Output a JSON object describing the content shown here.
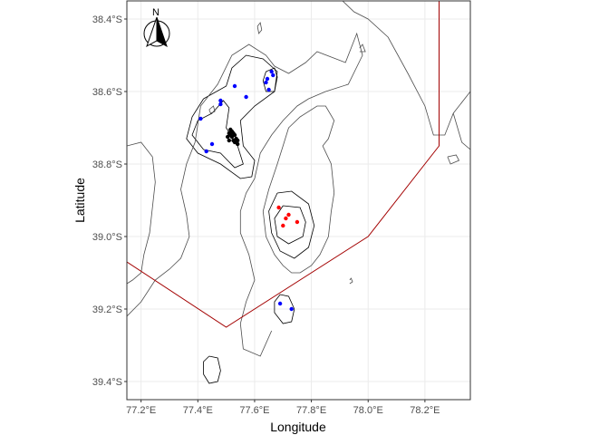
{
  "chart_data": {
    "type": "scatter",
    "xlabel": "Longitude",
    "ylabel": "Latitude",
    "xlim": [
      77.15,
      78.36
    ],
    "ylim": [
      -39.45,
      -38.35
    ],
    "x_ticks": [
      {
        "value": 77.2,
        "label": "77.2°E"
      },
      {
        "value": 77.4,
        "label": "77.4°E"
      },
      {
        "value": 77.6,
        "label": "77.6°E"
      },
      {
        "value": 77.8,
        "label": "77.8°E"
      },
      {
        "value": 78.0,
        "label": "78.0°E"
      },
      {
        "value": 78.2,
        "label": "78.2°E"
      }
    ],
    "y_ticks": [
      {
        "value": -38.4,
        "label": "38.4°S"
      },
      {
        "value": -38.6,
        "label": "38.6°S"
      },
      {
        "value": -38.8,
        "label": "38.8°S"
      },
      {
        "value": -39.0,
        "label": "39.0°S"
      },
      {
        "value": -39.2,
        "label": "39.2°S"
      },
      {
        "value": -39.4,
        "label": "39.4°S"
      }
    ],
    "north_arrow_label": "N",
    "grid": true,
    "panel_background": "#ffffff",
    "grid_color": "#ebebeb",
    "series": [
      {
        "color": "#0000ff",
        "points": [
          [
            77.53,
            -38.585
          ],
          [
            77.57,
            -38.615
          ],
          [
            77.48,
            -38.625
          ],
          [
            77.48,
            -38.635
          ],
          [
            77.41,
            -38.675
          ],
          [
            77.45,
            -38.745
          ],
          [
            77.43,
            -38.765
          ],
          [
            77.66,
            -38.545
          ],
          [
            77.665,
            -38.555
          ],
          [
            77.645,
            -38.565
          ],
          [
            77.64,
            -38.575
          ],
          [
            77.65,
            -38.595
          ],
          [
            77.69,
            -39.185
          ],
          [
            77.73,
            -39.2
          ]
        ]
      },
      {
        "color": "#ff0000",
        "points": [
          [
            77.685,
            -38.92
          ],
          [
            77.72,
            -38.94
          ],
          [
            77.71,
            -38.95
          ],
          [
            77.75,
            -38.96
          ],
          [
            77.7,
            -38.97
          ]
        ]
      },
      {
        "color": "#000000",
        "points": [
          [
            77.515,
            -38.705
          ],
          [
            77.52,
            -38.71
          ],
          [
            77.51,
            -38.715
          ],
          [
            77.525,
            -38.715
          ],
          [
            77.515,
            -38.72
          ],
          [
            77.53,
            -38.72
          ],
          [
            77.52,
            -38.725
          ],
          [
            77.535,
            -38.73
          ],
          [
            77.525,
            -38.735
          ],
          [
            77.54,
            -38.735
          ],
          [
            77.53,
            -38.74
          ],
          [
            77.54,
            -38.745
          ],
          [
            77.505,
            -38.725
          ],
          [
            77.51,
            -38.735
          ]
        ]
      }
    ],
    "boundary_line": {
      "color": "#a30000",
      "points": [
        [
          77.15,
          -39.07
        ],
        [
          77.5,
          -39.25
        ],
        [
          78.0,
          -39.0
        ],
        [
          78.25,
          -38.75
        ],
        [
          78.25,
          -38.35
        ]
      ]
    },
    "contours": [
      {
        "level": "black",
        "color": "#000000",
        "points": [
          [
            77.42,
            -38.62
          ],
          [
            77.5,
            -38.585
          ],
          [
            77.52,
            -38.535
          ],
          [
            77.57,
            -38.5
          ],
          [
            77.63,
            -38.51
          ],
          [
            77.68,
            -38.545
          ],
          [
            77.67,
            -38.6
          ],
          [
            77.6,
            -38.64
          ],
          [
            77.55,
            -38.68
          ],
          [
            77.56,
            -38.75
          ],
          [
            77.6,
            -38.79
          ],
          [
            77.59,
            -38.835
          ],
          [
            77.55,
            -38.84
          ],
          [
            77.48,
            -38.8
          ],
          [
            77.4,
            -38.77
          ],
          [
            77.36,
            -38.73
          ],
          [
            77.38,
            -38.67
          ],
          [
            77.42,
            -38.62
          ]
        ]
      },
      {
        "level": "black",
        "color": "#000000",
        "points": [
          [
            77.45,
            -38.66
          ],
          [
            77.49,
            -38.625
          ],
          [
            77.51,
            -38.645
          ],
          [
            77.5,
            -38.7
          ],
          [
            77.54,
            -38.75
          ],
          [
            77.56,
            -38.8
          ],
          [
            77.53,
            -38.81
          ],
          [
            77.48,
            -38.77
          ],
          [
            77.42,
            -38.76
          ],
          [
            77.38,
            -38.72
          ],
          [
            77.4,
            -38.68
          ],
          [
            77.45,
            -38.66
          ]
        ]
      },
      {
        "level": "black",
        "color": "#000000",
        "points": [
          [
            77.64,
            -38.545
          ],
          [
            77.67,
            -38.535
          ],
          [
            77.68,
            -38.56
          ],
          [
            77.67,
            -38.6
          ],
          [
            77.64,
            -38.6
          ],
          [
            77.63,
            -38.57
          ],
          [
            77.64,
            -38.545
          ]
        ]
      },
      {
        "level": "black",
        "color": "#000000",
        "points": [
          [
            77.68,
            -38.88
          ],
          [
            77.73,
            -38.875
          ],
          [
            77.79,
            -38.91
          ],
          [
            77.81,
            -38.97
          ],
          [
            77.79,
            -39.03
          ],
          [
            77.74,
            -39.06
          ],
          [
            77.69,
            -39.04
          ],
          [
            77.66,
            -38.99
          ],
          [
            77.65,
            -38.93
          ],
          [
            77.68,
            -38.88
          ]
        ]
      },
      {
        "level": "black",
        "color": "#000000",
        "points": [
          [
            77.7,
            -38.915
          ],
          [
            77.76,
            -38.92
          ],
          [
            77.78,
            -38.96
          ],
          [
            77.77,
            -39.0
          ],
          [
            77.72,
            -39.02
          ],
          [
            77.68,
            -39.0
          ],
          [
            77.67,
            -38.95
          ],
          [
            77.7,
            -38.915
          ]
        ]
      },
      {
        "level": "black",
        "color": "#000000",
        "points": [
          [
            77.69,
            -39.16
          ],
          [
            77.72,
            -39.165
          ],
          [
            77.74,
            -39.2
          ],
          [
            77.73,
            -39.235
          ],
          [
            77.7,
            -39.24
          ],
          [
            77.67,
            -39.21
          ],
          [
            77.67,
            -39.18
          ],
          [
            77.69,
            -39.16
          ]
        ]
      },
      {
        "level": "black",
        "color": "#000000",
        "points": [
          [
            77.44,
            -39.33
          ],
          [
            77.47,
            -39.335
          ],
          [
            77.48,
            -39.37
          ],
          [
            77.47,
            -39.4
          ],
          [
            77.44,
            -39.405
          ],
          [
            77.42,
            -39.38
          ],
          [
            77.42,
            -39.345
          ],
          [
            77.44,
            -39.33
          ]
        ]
      },
      {
        "level": "outer",
        "color": "#4d4d4d",
        "points": [
          [
            77.15,
            -39.22
          ],
          [
            77.2,
            -39.18
          ],
          [
            77.25,
            -39.12
          ],
          [
            77.3,
            -39.09
          ],
          [
            77.34,
            -39.06
          ],
          [
            77.37,
            -39.0
          ],
          [
            77.36,
            -38.94
          ],
          [
            77.34,
            -38.87
          ],
          [
            77.36,
            -38.8
          ],
          [
            77.39,
            -38.74
          ],
          [
            77.41,
            -38.64
          ],
          [
            77.47,
            -38.58
          ],
          [
            77.52,
            -38.5
          ],
          [
            77.58,
            -38.47
          ],
          [
            77.64,
            -38.5
          ],
          [
            77.67,
            -38.53
          ],
          [
            77.72,
            -38.55
          ],
          [
            77.78,
            -38.52
          ],
          [
            77.82,
            -38.49
          ],
          [
            77.92,
            -38.52
          ],
          [
            77.96,
            -38.44
          ],
          [
            77.98,
            -38.5
          ],
          [
            77.93,
            -38.58
          ],
          [
            77.85,
            -38.6
          ],
          [
            77.79,
            -38.62
          ],
          [
            77.75,
            -38.64
          ],
          [
            77.7,
            -38.68
          ],
          [
            77.66,
            -38.72
          ],
          [
            77.62,
            -38.77
          ],
          [
            77.6,
            -38.84
          ],
          [
            77.57,
            -38.88
          ],
          [
            77.55,
            -38.93
          ],
          [
            77.55,
            -38.99
          ],
          [
            77.58,
            -39.05
          ],
          [
            77.6,
            -39.12
          ],
          [
            77.57,
            -39.18
          ],
          [
            77.55,
            -39.24
          ],
          [
            77.56,
            -39.31
          ],
          [
            77.62,
            -39.33
          ],
          [
            77.66,
            -39.26
          ]
        ]
      },
      {
        "level": "outer",
        "color": "#4d4d4d",
        "points": [
          [
            77.15,
            -38.75
          ],
          [
            77.2,
            -38.74
          ],
          [
            77.24,
            -38.78
          ],
          [
            77.25,
            -38.85
          ],
          [
            77.24,
            -38.92
          ],
          [
            77.23,
            -38.99
          ],
          [
            77.21,
            -39.05
          ],
          [
            77.2,
            -39.1
          ],
          [
            77.17,
            -39.12
          ],
          [
            77.15,
            -39.13
          ]
        ]
      },
      {
        "level": "outer",
        "color": "#4d4d4d",
        "points": [
          [
            77.72,
            -38.7
          ],
          [
            77.76,
            -38.67
          ],
          [
            77.82,
            -38.64
          ],
          [
            77.85,
            -38.64
          ],
          [
            77.88,
            -38.68
          ],
          [
            77.86,
            -38.73
          ],
          [
            77.84,
            -38.75
          ],
          [
            77.87,
            -38.8
          ],
          [
            77.88,
            -38.88
          ],
          [
            77.87,
            -38.93
          ],
          [
            77.86,
            -39.0
          ],
          [
            77.83,
            -39.05
          ],
          [
            77.8,
            -39.08
          ],
          [
            77.76,
            -39.1
          ],
          [
            77.73,
            -39.1
          ],
          [
            77.7,
            -39.08
          ],
          [
            77.67,
            -39.05
          ],
          [
            77.64,
            -39.0
          ],
          [
            77.63,
            -38.93
          ],
          [
            77.65,
            -38.87
          ],
          [
            77.68,
            -38.8
          ],
          [
            77.7,
            -38.75
          ],
          [
            77.72,
            -38.7
          ]
        ]
      },
      {
        "level": "outer",
        "color": "#4d4d4d",
        "points": [
          [
            77.91,
            -38.35
          ],
          [
            77.95,
            -38.38
          ],
          [
            78.0,
            -38.4
          ],
          [
            78.07,
            -38.45
          ],
          [
            78.14,
            -38.55
          ],
          [
            78.2,
            -38.64
          ],
          [
            78.23,
            -38.72
          ],
          [
            78.27,
            -38.72
          ],
          [
            78.3,
            -38.66
          ],
          [
            78.36,
            -38.6
          ]
        ]
      },
      {
        "level": "outer",
        "color": "#4d4d4d",
        "points": [
          [
            78.3,
            -38.66
          ],
          [
            78.33,
            -38.74
          ],
          [
            78.36,
            -38.76
          ]
        ]
      },
      {
        "level": "outer",
        "color": "#4d4d4d",
        "points": [
          [
            78.28,
            -38.78
          ],
          [
            78.31,
            -38.775
          ],
          [
            78.32,
            -38.79
          ],
          [
            78.29,
            -38.8
          ],
          [
            78.28,
            -38.78
          ]
        ]
      },
      {
        "level": "outer",
        "color": "#4d4d4d",
        "points": [
          [
            77.61,
            -38.42
          ],
          [
            77.62,
            -38.41
          ],
          [
            77.625,
            -38.43
          ],
          [
            77.615,
            -38.44
          ],
          [
            77.61,
            -38.42
          ]
        ]
      },
      {
        "level": "outer",
        "color": "#4d4d4d",
        "points": [
          [
            77.97,
            -38.48
          ],
          [
            77.98,
            -38.47
          ],
          [
            77.99,
            -38.49
          ],
          [
            77.97,
            -38.49
          ]
        ]
      },
      {
        "level": "outer",
        "color": "#4d4d4d",
        "points": [
          [
            77.44,
            -38.65
          ],
          [
            77.455,
            -38.64
          ],
          [
            77.46,
            -38.655
          ],
          [
            77.445,
            -38.66
          ],
          [
            77.44,
            -38.65
          ]
        ]
      },
      {
        "level": "outer",
        "color": "#4d4d4d",
        "points": [
          [
            77.935,
            -39.12
          ],
          [
            77.94,
            -39.115
          ],
          [
            77.945,
            -39.125
          ],
          [
            77.935,
            -39.13
          ]
        ]
      }
    ]
  }
}
